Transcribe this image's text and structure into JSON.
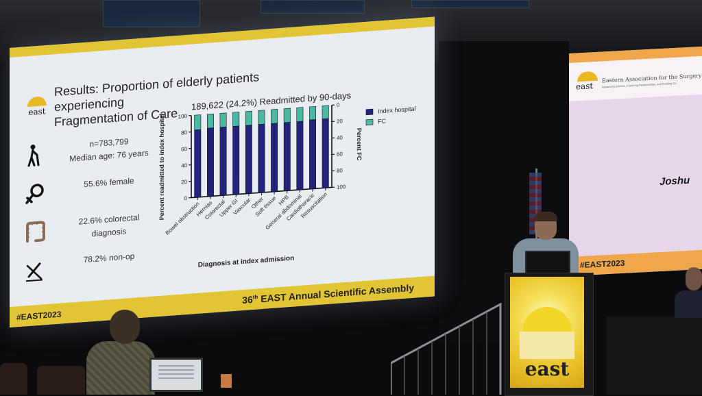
{
  "slide": {
    "title_line1": "Results: Proportion of elderly patients experiencing",
    "title_line2": "Fragmentation of Care",
    "logo_word": "east",
    "stats": [
      {
        "icon": "elderly-person-icon",
        "text": "n=783,799\nMedian age: 76 years"
      },
      {
        "icon": "female-symbol-icon",
        "text": "55.6% female"
      },
      {
        "icon": "colon-icon",
        "text": "22.6% colorectal\ndiagnosis"
      },
      {
        "icon": "no-scalpel-icon",
        "text": "78.2% non-op"
      }
    ],
    "footer_hashtag": "#EAST2023",
    "footer_assembly_num": "36",
    "footer_assembly_suffix": "th",
    "footer_assembly_text": " EAST Annual Scientific Assembly"
  },
  "chart_data": {
    "type": "bar",
    "stacked": true,
    "title": "189,622 (24.2%) Readmitted by 90-days",
    "xlabel": "Diagnosis at index admission",
    "ylabel": "Percent readmitted to index hospital",
    "y2label": "Percent FC",
    "ylim": [
      0,
      100
    ],
    "y2lim": [
      100,
      0
    ],
    "yticks": [
      0,
      20,
      40,
      60,
      80,
      100
    ],
    "y2ticks": [
      0,
      20,
      40,
      60,
      80,
      100
    ],
    "legend_position": "top-right",
    "categories": [
      "Bowel obstruction",
      "Hernias",
      "Colorectal",
      "Upper GI",
      "Vascular",
      "Other",
      "Soft tissue",
      "HPB",
      "General abdominal",
      "Cardiothoracic",
      "Resuscitation"
    ],
    "series": [
      {
        "name": "Index hospital",
        "color": "#22237a",
        "values": [
          82,
          83,
          83,
          83,
          83,
          83,
          83,
          83,
          83,
          84,
          84
        ]
      },
      {
        "name": "FC",
        "color": "#4ab8a2",
        "values": [
          18,
          17,
          17,
          17,
          17,
          17,
          17,
          17,
          17,
          16,
          16
        ]
      }
    ]
  },
  "right_screen": {
    "logo_word": "east",
    "org_line": "Eastern Association for the Surgery of",
    "org_sub": "Advancing Science, Fostering Relationships, and Building Ca",
    "speaker_name": "Joshu",
    "hashtag": "#EAST2023"
  },
  "podium": {
    "logo_word": "east"
  },
  "colors": {
    "accent_yellow": "#e2c534",
    "accent_orange": "#f0a64b",
    "navy": "#22237a",
    "teal": "#4ab8a2"
  }
}
